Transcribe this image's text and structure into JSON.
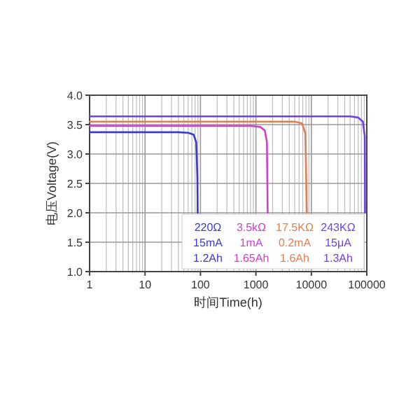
{
  "chart_data": {
    "type": "line",
    "xlabel": "时间Time(h)",
    "ylabel": "电压Voltage(V)",
    "log": "x",
    "grid": true,
    "legend": "bottom right",
    "xlim": [
      1,
      100000
    ],
    "xticks": [
      1,
      10,
      100,
      1000,
      10000,
      100000
    ],
    "ylim": [
      1,
      4
    ],
    "yticks": [
      {
        "value": 1,
        "label": "1.0"
      },
      1.5,
      {
        "value": 2,
        "label": "2.0"
      },
      2.5,
      {
        "value": 3,
        "label": "3.0"
      },
      3.5,
      {
        "value": 4,
        "label": "4.0"
      }
    ],
    "series": [
      {
        "name": "220Ω",
        "color": "#3a3ad0",
        "x": [
          1,
          40,
          60,
          75,
          84,
          88,
          89
        ],
        "values": [
          3.37,
          3.37,
          3.36,
          3.33,
          3.2,
          2.6,
          2.0
        ]
      },
      {
        "name": "3.5kΩ",
        "color": "#d040d0",
        "x": [
          1,
          800,
          1200,
          1450,
          1580,
          1630
        ],
        "values": [
          3.48,
          3.48,
          3.46,
          3.4,
          3.2,
          2.0
        ]
      },
      {
        "name": "17.5KΩ",
        "color": "#e08050",
        "x": [
          1,
          5000,
          6800,
          7800,
          8300
        ],
        "values": [
          3.55,
          3.55,
          3.52,
          3.35,
          2.0
        ]
      },
      {
        "name": "243KΩ",
        "color": "#7040e0",
        "x": [
          1,
          50000,
          70000,
          85000,
          92000,
          93000
        ],
        "values": [
          3.64,
          3.64,
          3.62,
          3.55,
          3.3,
          2.0
        ]
      }
    ],
    "annotations": [
      "15mA",
      "1mA",
      "0.2mA",
      "15μA",
      "1.2Ah",
      "1.65Ah",
      "1.6Ah",
      "1.3Ah"
    ]
  }
}
